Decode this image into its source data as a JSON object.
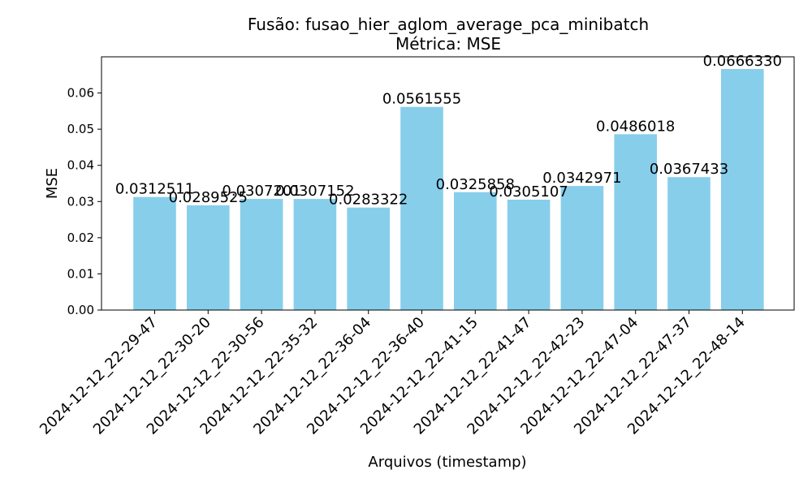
{
  "chart_data": {
    "type": "bar",
    "title": "Fusão: fusao_hier_aglom_average_pca_minibatch",
    "subtitle": "Métrica: MSE",
    "xlabel": "Arquivos (timestamp)",
    "ylabel": "MSE",
    "ylim": [
      0,
      0.07
    ],
    "yticks": [
      "0.00",
      "0.01",
      "0.02",
      "0.03",
      "0.04",
      "0.05",
      "0.06"
    ],
    "grid": false,
    "bar_color": "#87CEEB",
    "categories": [
      "2024-12-12_22-29-47",
      "2024-12-12_22-30-20",
      "2024-12-12_22-30-56",
      "2024-12-12_22-35-32",
      "2024-12-12_22-36-04",
      "2024-12-12_22-36-40",
      "2024-12-12_22-41-15",
      "2024-12-12_22-41-47",
      "2024-12-12_22-42-23",
      "2024-12-12_22-47-04",
      "2024-12-12_22-47-37",
      "2024-12-12_22-48-14"
    ],
    "values": [
      0.0312511,
      0.0289525,
      0.0307201,
      0.0307152,
      0.0283322,
      0.0561555,
      0.0325858,
      0.0305107,
      0.0342971,
      0.0486018,
      0.0367433,
      0.066633
    ],
    "value_labels": [
      "0.0312511",
      "0.0289525",
      "0.0307201",
      "0.0307152",
      "0.0283322",
      "0.0561555",
      "0.0325858",
      "0.0305107",
      "0.0342971",
      "0.0486018",
      "0.0367433",
      "0.0666330"
    ]
  }
}
